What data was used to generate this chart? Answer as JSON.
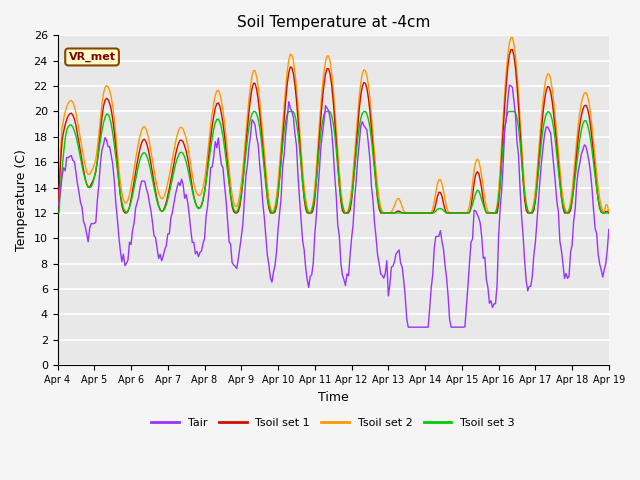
{
  "title": "Soil Temperature at -4cm",
  "xlabel": "Time",
  "ylabel": "Temperature (C)",
  "ylim": [
    0,
    26
  ],
  "xlim": [
    0,
    360
  ],
  "bg_color": "#e8e8e8",
  "grid_color": "#ffffff",
  "line_colors": {
    "Tair": "#9933ff",
    "Tsoil_set1": "#cc1100",
    "Tsoil_set2": "#ff9900",
    "Tsoil_set3": "#00cc00"
  },
  "legend_labels": [
    "Tair",
    "Tsoil set 1",
    "Tsoil set 2",
    "Tsoil set 3"
  ],
  "vr_met_label": "VR_met",
  "x_tick_labels": [
    "Apr 4",
    "Apr 5",
    "Apr 6",
    "Apr 7",
    "Apr 8",
    "Apr 9",
    "Apr 10",
    "Apr 11",
    "Apr 12",
    "Apr 13",
    "Apr 14",
    "Apr 15",
    "Apr 16",
    "Apr 17",
    "Apr 18",
    "Apr 19"
  ],
  "x_tick_positions": [
    0,
    24,
    48,
    72,
    96,
    120,
    144,
    168,
    192,
    216,
    240,
    264,
    288,
    312,
    336,
    360
  ]
}
